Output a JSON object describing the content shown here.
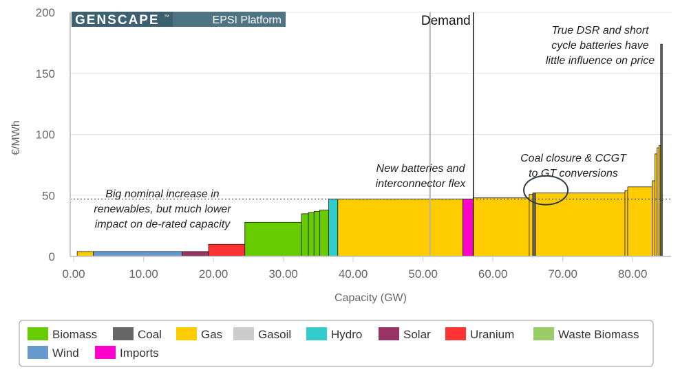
{
  "chart_data": {
    "type": "bar",
    "subtype": "merit-order-step",
    "title": "",
    "logo": {
      "brand": "GENSCAPE",
      "trademark": "™",
      "product": "EPSI Platform",
      "brand_bg": "#3d6070",
      "product_bg": "#4e7384"
    },
    "xlabel": "Capacity (GW)",
    "ylabel": "€/MWh",
    "xlim": [
      -0.5,
      85.5
    ],
    "ylim": [
      0,
      200
    ],
    "xticks": [
      0,
      10,
      20,
      30,
      40,
      50,
      60,
      70,
      80
    ],
    "xtick_labels": [
      "0.00",
      "10.00",
      "20.00",
      "30.00",
      "40.00",
      "50.00",
      "60.00",
      "70.00",
      "80.00"
    ],
    "yticks": [
      0,
      50,
      100,
      150,
      200
    ],
    "ytick_labels": [
      "0",
      "50",
      "100",
      "150",
      "200"
    ],
    "reference_lines": [
      {
        "kind": "horizontal-dotted",
        "y": 47
      },
      {
        "kind": "vertical-gray",
        "x": 51
      },
      {
        "kind": "vertical-demand",
        "x": 57.2,
        "label": "Demand"
      }
    ],
    "series": [
      {
        "name": "Biomass",
        "color": "#66cc00"
      },
      {
        "name": "Coal",
        "color": "#666666"
      },
      {
        "name": "Gas",
        "color": "#ffcc00"
      },
      {
        "name": "Gasoil",
        "color": "#cccccc"
      },
      {
        "name": "Hydro",
        "color": "#33cccc"
      },
      {
        "name": "Solar",
        "color": "#993366"
      },
      {
        "name": "Uranium",
        "color": "#ff3333"
      },
      {
        "name": "Waste Biomass",
        "color": "#99cc66"
      },
      {
        "name": "Wind",
        "color": "#6699cc"
      },
      {
        "name": "Imports",
        "color": "#ff00cc"
      }
    ],
    "blocks": [
      {
        "series": "Gas",
        "x0": 0.5,
        "x1": 2.8,
        "y": 4
      },
      {
        "series": "Wind",
        "x0": 2.8,
        "x1": 15.5,
        "y": 4
      },
      {
        "series": "Solar",
        "x0": 15.5,
        "x1": 19.3,
        "y": 4
      },
      {
        "series": "Uranium",
        "x0": 19.3,
        "x1": 24.5,
        "y": 10
      },
      {
        "series": "Biomass",
        "x0": 24.5,
        "x1": 32.6,
        "y": 28
      },
      {
        "series": "Biomass",
        "x0": 32.6,
        "x1": 33.6,
        "y": 35
      },
      {
        "series": "Biomass",
        "x0": 33.6,
        "x1": 34.4,
        "y": 36
      },
      {
        "series": "Biomass",
        "x0": 34.4,
        "x1": 35.2,
        "y": 37
      },
      {
        "series": "Biomass",
        "x0": 35.2,
        "x1": 36.5,
        "y": 38
      },
      {
        "series": "Hydro",
        "x0": 36.5,
        "x1": 37.8,
        "y": 47
      },
      {
        "series": "Gas",
        "x0": 37.8,
        "x1": 55.7,
        "y": 47
      },
      {
        "series": "Imports",
        "x0": 55.7,
        "x1": 57.2,
        "y": 47
      },
      {
        "series": "Gas",
        "x0": 57.2,
        "x1": 65.2,
        "y": 48
      },
      {
        "series": "Gas",
        "x0": 65.2,
        "x1": 65.7,
        "y": 51
      },
      {
        "series": "Coal",
        "x0": 65.7,
        "x1": 66.1,
        "y": 52
      },
      {
        "series": "Gas",
        "x0": 66.1,
        "x1": 78.9,
        "y": 52
      },
      {
        "series": "Gas",
        "x0": 78.9,
        "x1": 79.3,
        "y": 54
      },
      {
        "series": "Gas",
        "x0": 79.3,
        "x1": 82.8,
        "y": 57
      },
      {
        "series": "Gas",
        "x0": 82.8,
        "x1": 83.2,
        "y": 62
      },
      {
        "series": "Gas",
        "x0": 83.2,
        "x1": 83.5,
        "y": 84
      },
      {
        "series": "Gas",
        "x0": 83.5,
        "x1": 83.8,
        "y": 89
      },
      {
        "series": "Gas",
        "x0": 83.8,
        "x1": 84.0,
        "y": 91
      },
      {
        "series": "Coal",
        "x0": 84.0,
        "x1": 84.25,
        "y": 174
      }
    ],
    "annotations": [
      {
        "id": "renewables",
        "lines": [
          "Big nominal increase in",
          "renewables, but much lower",
          "impact on de-rated capacity"
        ]
      },
      {
        "id": "batteries",
        "lines": [
          "New batteries and",
          "interconnector flex"
        ]
      },
      {
        "id": "coal-closure",
        "lines": [
          "Coal closure & CCGT",
          "to GT conversions"
        ]
      },
      {
        "id": "dsr",
        "lines": [
          "True DSR and short",
          "cycle batteries have",
          "little influence on price"
        ]
      }
    ],
    "circle_marker": {
      "x": 66,
      "y": 52
    },
    "legend": {
      "position": "bottom"
    }
  }
}
